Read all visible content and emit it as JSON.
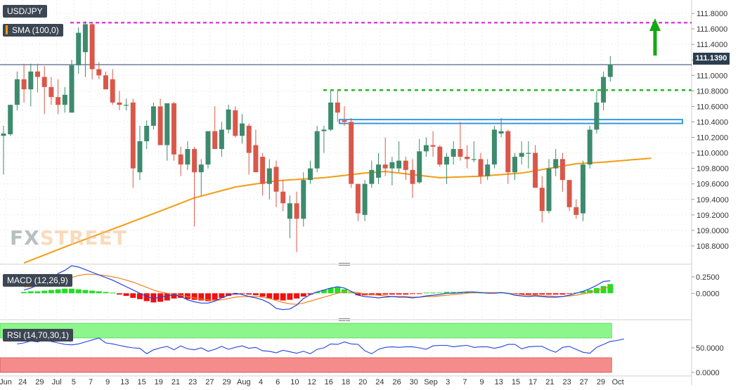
{
  "labels": {
    "pair": "USD/JPY",
    "sma": "SMA (100,0)",
    "macd": "MACD (12,26,9)",
    "rsi": "RSI (14,70,30,1)",
    "last_price": "111.1390",
    "watermark_a": "FX",
    "watermark_b": "STREET"
  },
  "colors": {
    "up": "#3d8b6e",
    "down": "#d9584a",
    "sma": "#f39c12",
    "resistance_line": "#e040e0",
    "support_line": "#22bb22",
    "zone": "#3a9ad9",
    "macd_line": "#2244dd",
    "signal_line": "#f08020",
    "hist_up": "#22dd22",
    "hist_down": "#ee1111",
    "rsi_line": "#2244dd",
    "rsi_overbought": "#8cf58c",
    "rsi_oversold": "#f58c8c",
    "arrow": "#11aa11"
  },
  "chart_data": {
    "type": "candlestick",
    "price_axis": {
      "ticks": [
        "111.8000",
        "111.6000",
        "111.4000",
        "111.2000",
        "111.0000",
        "110.8000",
        "110.6000",
        "110.4000",
        "110.2000",
        "110.0000",
        "109.8000",
        "109.6000",
        "109.4000",
        "109.2000",
        "109.0000",
        "108.8000"
      ],
      "range": [
        108.6,
        111.9
      ]
    },
    "x_axis": {
      "ticks": [
        "Jun",
        "24",
        "29",
        "Jul",
        "5",
        "7",
        "9",
        "13",
        "15",
        "19",
        "21",
        "23",
        "27",
        "29",
        "Aug",
        "4",
        "6",
        "10",
        "12",
        "16",
        "18",
        "20",
        "24",
        "26",
        "30",
        "Sep",
        "3",
        "7",
        "9",
        "13",
        "15",
        "17",
        "21",
        "23",
        "27",
        "29",
        "Oct"
      ]
    },
    "levels": {
      "resistance": 111.68,
      "support": 110.81,
      "zone": [
        110.38,
        110.43
      ]
    },
    "sma_last": 109.93,
    "candles": [
      {
        "o": 110.22,
        "h": 110.35,
        "l": 109.72,
        "c": 110.25
      },
      {
        "o": 110.24,
        "h": 110.62,
        "l": 110.22,
        "c": 110.62
      },
      {
        "o": 110.62,
        "h": 111.05,
        "l": 110.55,
        "c": 110.95
      },
      {
        "o": 110.95,
        "h": 111.15,
        "l": 110.65,
        "c": 110.82
      },
      {
        "o": 110.82,
        "h": 111.15,
        "l": 110.6,
        "c": 111.05
      },
      {
        "o": 111.05,
        "h": 111.15,
        "l": 110.78,
        "c": 110.98
      },
      {
        "o": 110.98,
        "h": 111.12,
        "l": 110.5,
        "c": 110.85
      },
      {
        "o": 110.85,
        "h": 110.98,
        "l": 110.62,
        "c": 110.72
      },
      {
        "o": 110.72,
        "h": 110.95,
        "l": 110.5,
        "c": 110.62
      },
      {
        "o": 110.62,
        "h": 110.85,
        "l": 110.52,
        "c": 110.75
      },
      {
        "o": 110.52,
        "h": 111.2,
        "l": 110.52,
        "c": 111.13
      },
      {
        "o": 111.13,
        "h": 111.62,
        "l": 111.02,
        "c": 111.55
      },
      {
        "o": 111.3,
        "h": 111.7,
        "l": 110.98,
        "c": 111.66
      },
      {
        "o": 111.66,
        "h": 111.68,
        "l": 110.95,
        "c": 111.08
      },
      {
        "o": 111.08,
        "h": 111.17,
        "l": 110.95,
        "c": 111.0
      },
      {
        "o": 111.0,
        "h": 111.05,
        "l": 110.82,
        "c": 110.82
      },
      {
        "o": 110.95,
        "h": 111.08,
        "l": 110.62,
        "c": 110.65
      },
      {
        "o": 110.65,
        "h": 110.8,
        "l": 110.55,
        "c": 110.62
      },
      {
        "o": 110.62,
        "h": 110.7,
        "l": 110.55,
        "c": 110.62
      },
      {
        "o": 110.65,
        "h": 110.7,
        "l": 109.55,
        "c": 109.8
      },
      {
        "o": 109.75,
        "h": 110.35,
        "l": 109.65,
        "c": 110.15
      },
      {
        "o": 110.15,
        "h": 110.42,
        "l": 110.05,
        "c": 110.35
      },
      {
        "o": 110.35,
        "h": 110.65,
        "l": 110.3,
        "c": 110.6
      },
      {
        "o": 110.6,
        "h": 110.7,
        "l": 110.1,
        "c": 110.1
      },
      {
        "o": 110.1,
        "h": 110.64,
        "l": 109.9,
        "c": 110.64
      },
      {
        "o": 110.64,
        "h": 110.66,
        "l": 109.9,
        "c": 109.98
      },
      {
        "o": 109.98,
        "h": 110.08,
        "l": 109.7,
        "c": 109.85
      },
      {
        "o": 109.85,
        "h": 110.15,
        "l": 109.78,
        "c": 110.05
      },
      {
        "o": 110.05,
        "h": 110.08,
        "l": 109.05,
        "c": 109.75
      },
      {
        "o": 109.75,
        "h": 109.92,
        "l": 109.45,
        "c": 109.85
      },
      {
        "o": 109.85,
        "h": 110.28,
        "l": 109.8,
        "c": 110.28
      },
      {
        "o": 110.28,
        "h": 110.6,
        "l": 110.05,
        "c": 110.05
      },
      {
        "o": 110.05,
        "h": 110.4,
        "l": 109.95,
        "c": 110.3
      },
      {
        "o": 110.3,
        "h": 110.62,
        "l": 110.25,
        "c": 110.56
      },
      {
        "o": 110.55,
        "h": 110.6,
        "l": 110.2,
        "c": 110.22
      },
      {
        "o": 110.22,
        "h": 110.5,
        "l": 110.12,
        "c": 110.38
      },
      {
        "o": 110.35,
        "h": 110.38,
        "l": 109.72,
        "c": 110.0
      },
      {
        "o": 110.1,
        "h": 110.3,
        "l": 109.75,
        "c": 109.75
      },
      {
        "o": 109.95,
        "h": 110.0,
        "l": 109.45,
        "c": 109.6
      },
      {
        "o": 109.6,
        "h": 109.92,
        "l": 109.4,
        "c": 109.8
      },
      {
        "o": 109.82,
        "h": 109.9,
        "l": 109.3,
        "c": 109.5
      },
      {
        "o": 109.5,
        "h": 109.65,
        "l": 109.25,
        "c": 109.35
      },
      {
        "o": 109.15,
        "h": 109.45,
        "l": 108.9,
        "c": 109.35
      },
      {
        "o": 109.35,
        "h": 109.5,
        "l": 108.72,
        "c": 109.15
      },
      {
        "o": 109.15,
        "h": 109.75,
        "l": 109.05,
        "c": 109.65
      },
      {
        "o": 109.65,
        "h": 109.9,
        "l": 109.6,
        "c": 109.8
      },
      {
        "o": 109.8,
        "h": 110.35,
        "l": 109.75,
        "c": 110.28
      },
      {
        "o": 110.28,
        "h": 110.35,
        "l": 110.0,
        "c": 110.3
      },
      {
        "o": 110.3,
        "h": 110.8,
        "l": 110.28,
        "c": 110.65
      },
      {
        "o": 110.65,
        "h": 110.8,
        "l": 110.4,
        "c": 110.52
      },
      {
        "o": 110.42,
        "h": 110.6,
        "l": 110.35,
        "c": 110.4
      },
      {
        "o": 110.4,
        "h": 110.45,
        "l": 109.55,
        "c": 109.6
      },
      {
        "o": 109.6,
        "h": 109.6,
        "l": 109.12,
        "c": 109.22
      },
      {
        "o": 109.2,
        "h": 109.65,
        "l": 109.12,
        "c": 109.6
      },
      {
        "o": 109.6,
        "h": 109.9,
        "l": 109.55,
        "c": 109.78
      },
      {
        "o": 109.68,
        "h": 110.0,
        "l": 109.6,
        "c": 109.85
      },
      {
        "o": 109.85,
        "h": 110.2,
        "l": 109.7,
        "c": 109.8
      },
      {
        "o": 109.8,
        "h": 109.95,
        "l": 109.58,
        "c": 109.88
      },
      {
        "o": 109.8,
        "h": 110.15,
        "l": 109.75,
        "c": 109.9
      },
      {
        "o": 109.9,
        "h": 109.95,
        "l": 109.65,
        "c": 109.78
      },
      {
        "o": 109.78,
        "h": 109.92,
        "l": 109.42,
        "c": 109.6
      },
      {
        "o": 109.62,
        "h": 110.18,
        "l": 109.6,
        "c": 110.02
      },
      {
        "o": 110.02,
        "h": 110.2,
        "l": 109.95,
        "c": 110.1
      },
      {
        "o": 110.1,
        "h": 110.28,
        "l": 109.95,
        "c": 110.08
      },
      {
        "o": 110.08,
        "h": 110.1,
        "l": 109.82,
        "c": 109.85
      },
      {
        "o": 109.85,
        "h": 110.0,
        "l": 109.6,
        "c": 109.95
      },
      {
        "o": 109.95,
        "h": 110.15,
        "l": 109.85,
        "c": 110.05
      },
      {
        "o": 110.05,
        "h": 110.4,
        "l": 109.9,
        "c": 109.95
      },
      {
        "o": 109.95,
        "h": 110.1,
        "l": 109.8,
        "c": 109.92
      },
      {
        "o": 109.92,
        "h": 110.15,
        "l": 109.88,
        "c": 109.92
      },
      {
        "o": 109.92,
        "h": 110.0,
        "l": 109.6,
        "c": 109.7
      },
      {
        "o": 109.7,
        "h": 109.92,
        "l": 109.65,
        "c": 109.85
      },
      {
        "o": 109.85,
        "h": 110.35,
        "l": 109.8,
        "c": 110.3
      },
      {
        "o": 110.25,
        "h": 110.45,
        "l": 110.2,
        "c": 110.28
      },
      {
        "o": 110.28,
        "h": 110.3,
        "l": 109.6,
        "c": 109.75
      },
      {
        "o": 109.75,
        "h": 110.0,
        "l": 109.65,
        "c": 109.95
      },
      {
        "o": 109.95,
        "h": 110.15,
        "l": 109.85,
        "c": 110.0
      },
      {
        "o": 110.0,
        "h": 110.15,
        "l": 109.8,
        "c": 110.0
      },
      {
        "o": 110.0,
        "h": 110.1,
        "l": 109.55,
        "c": 109.55
      },
      {
        "o": 109.55,
        "h": 109.7,
        "l": 109.1,
        "c": 109.25
      },
      {
        "o": 109.25,
        "h": 109.92,
        "l": 109.22,
        "c": 109.8
      },
      {
        "o": 109.8,
        "h": 110.05,
        "l": 109.7,
        "c": 109.92
      },
      {
        "o": 109.92,
        "h": 110.0,
        "l": 109.5,
        "c": 109.65
      },
      {
        "o": 109.65,
        "h": 109.65,
        "l": 109.25,
        "c": 109.3
      },
      {
        "o": 109.3,
        "h": 109.4,
        "l": 109.15,
        "c": 109.2
      },
      {
        "o": 109.22,
        "h": 109.9,
        "l": 109.12,
        "c": 109.85
      },
      {
        "o": 109.85,
        "h": 110.35,
        "l": 109.8,
        "c": 110.3
      },
      {
        "o": 110.3,
        "h": 110.8,
        "l": 110.25,
        "c": 110.65
      },
      {
        "o": 110.65,
        "h": 111.05,
        "l": 110.55,
        "c": 110.98
      },
      {
        "o": 110.98,
        "h": 111.25,
        "l": 110.92,
        "c": 111.14
      }
    ],
    "sma": [
      {
        "i": 3,
        "v": 108.58
      },
      {
        "i": 10,
        "v": 108.82
      },
      {
        "i": 17,
        "v": 109.05
      },
      {
        "i": 23,
        "v": 109.25
      },
      {
        "i": 28,
        "v": 109.42
      },
      {
        "i": 34,
        "v": 109.56
      },
      {
        "i": 40,
        "v": 109.64
      },
      {
        "i": 47,
        "v": 109.68
      },
      {
        "i": 53,
        "v": 109.74
      },
      {
        "i": 56,
        "v": 109.76
      },
      {
        "i": 60,
        "v": 109.72
      },
      {
        "i": 64,
        "v": 109.68
      },
      {
        "i": 70,
        "v": 109.7
      },
      {
        "i": 76,
        "v": 109.74
      },
      {
        "i": 80,
        "v": 109.8
      },
      {
        "i": 84,
        "v": 109.86
      },
      {
        "i": 88,
        "v": 109.88
      },
      {
        "i": 92,
        "v": 109.91
      },
      {
        "i": 95,
        "v": 109.93
      }
    ],
    "macd": {
      "ticks": [
        "0.2500",
        "0.0000"
      ],
      "range": [
        -0.35,
        0.4
      ],
      "macd_line": [
        0.05,
        0.08,
        0.12,
        0.15,
        0.2,
        0.3,
        0.35,
        0.42,
        0.4,
        0.36,
        0.32,
        0.28,
        0.24,
        0.2,
        0.15,
        0.1,
        0.05,
        0.0,
        -0.05,
        -0.08,
        -0.06,
        -0.04,
        -0.02,
        -0.05,
        -0.1,
        -0.13,
        -0.15,
        -0.15,
        -0.12,
        -0.07,
        -0.03,
        0.0,
        -0.02,
        -0.05,
        -0.07,
        -0.1,
        -0.15,
        -0.23,
        -0.25,
        -0.24,
        -0.18,
        -0.08,
        -0.02,
        0.02,
        0.05,
        0.08,
        0.1,
        0.08,
        0.03,
        -0.03,
        -0.05,
        -0.06,
        -0.07,
        -0.06,
        -0.05,
        -0.06,
        -0.06,
        -0.07,
        -0.06,
        -0.04,
        -0.03,
        -0.02,
        0.0,
        0.0,
        0.01,
        0.02,
        0.02,
        0.01,
        0.0,
        0.0,
        0.01,
        0.0,
        -0.03,
        -0.04,
        -0.05,
        -0.04,
        -0.05,
        -0.06,
        -0.06,
        -0.05,
        -0.03,
        0.0,
        0.03,
        0.07,
        0.12,
        0.18,
        0.19
      ],
      "signal_line": [
        0.1,
        0.1,
        0.11,
        0.12,
        0.14,
        0.17,
        0.2,
        0.24,
        0.27,
        0.29,
        0.29,
        0.28,
        0.27,
        0.25,
        0.23,
        0.2,
        0.17,
        0.13,
        0.09,
        0.05,
        0.02,
        0.0,
        -0.02,
        -0.03,
        -0.05,
        -0.07,
        -0.09,
        -0.1,
        -0.11,
        -0.1,
        -0.08,
        -0.06,
        -0.05,
        -0.05,
        -0.05,
        -0.06,
        -0.08,
        -0.11,
        -0.14,
        -0.16,
        -0.17,
        -0.15,
        -0.12,
        -0.09,
        -0.06,
        -0.03,
        0.0,
        0.02,
        0.02,
        0.01,
        -0.01,
        -0.02,
        -0.03,
        -0.04,
        -0.05,
        -0.05,
        -0.05,
        -0.06,
        -0.06,
        -0.05,
        -0.05,
        -0.04,
        -0.03,
        -0.02,
        -0.01,
        0.0,
        0.01,
        0.01,
        0.01,
        0.01,
        0.01,
        0.0,
        -0.01,
        -0.02,
        -0.03,
        -0.03,
        -0.04,
        -0.04,
        -0.05,
        -0.05,
        -0.04,
        -0.03,
        -0.01,
        0.01,
        0.04,
        0.07,
        0.1
      ],
      "histogram": [
        0.02,
        0.03,
        0.03,
        0.04,
        0.05,
        0.06,
        0.07,
        0.07,
        0.06,
        0.05,
        0.04,
        0.03,
        0.02,
        0.01,
        -0.02,
        -0.04,
        -0.07,
        -0.09,
        -0.12,
        -0.14,
        -0.13,
        -0.11,
        -0.08,
        -0.07,
        -0.09,
        -0.1,
        -0.11,
        -0.12,
        -0.1,
        -0.07,
        -0.04,
        -0.02,
        -0.01,
        -0.02,
        -0.03,
        -0.05,
        -0.08,
        -0.1,
        -0.11,
        -0.1,
        -0.08,
        -0.05,
        -0.02,
        0.02,
        0.05,
        0.08,
        0.09,
        0.06,
        0.01,
        -0.03,
        -0.03,
        -0.03,
        -0.03,
        -0.02,
        -0.02,
        -0.02,
        -0.02,
        -0.01,
        -0.01,
        0.01,
        0.01,
        0.01,
        0.02,
        0.02,
        0.02,
        0.02,
        0.02,
        0.01,
        0.01,
        0.01,
        0.01,
        0.0,
        -0.01,
        -0.02,
        -0.02,
        -0.02,
        -0.02,
        -0.02,
        -0.02,
        -0.02,
        -0.01,
        0.01,
        0.03,
        0.05,
        0.08,
        0.11,
        0.14
      ]
    },
    "rsi": {
      "ticks": [
        "50.0000",
        "0.0000"
      ],
      "range": [
        0,
        100
      ],
      "overbought": 70,
      "oversold": 30,
      "values": [
        58,
        60,
        64,
        62,
        66,
        63,
        60,
        57,
        56,
        58,
        62,
        66,
        70,
        60,
        58,
        55,
        52,
        50,
        49,
        38,
        46,
        50,
        53,
        46,
        54,
        48,
        46,
        50,
        43,
        47,
        53,
        47,
        51,
        54,
        49,
        51,
        44,
        43,
        40,
        45,
        42,
        39,
        43,
        38,
        47,
        50,
        58,
        57,
        62,
        58,
        57,
        44,
        38,
        47,
        51,
        52,
        51,
        52,
        52,
        50,
        47,
        54,
        55,
        55,
        52,
        54,
        55,
        51,
        52,
        52,
        49,
        52,
        57,
        57,
        48,
        52,
        53,
        53,
        46,
        41,
        51,
        53,
        47,
        41,
        39,
        51,
        57,
        63,
        65,
        68
      ]
    }
  }
}
